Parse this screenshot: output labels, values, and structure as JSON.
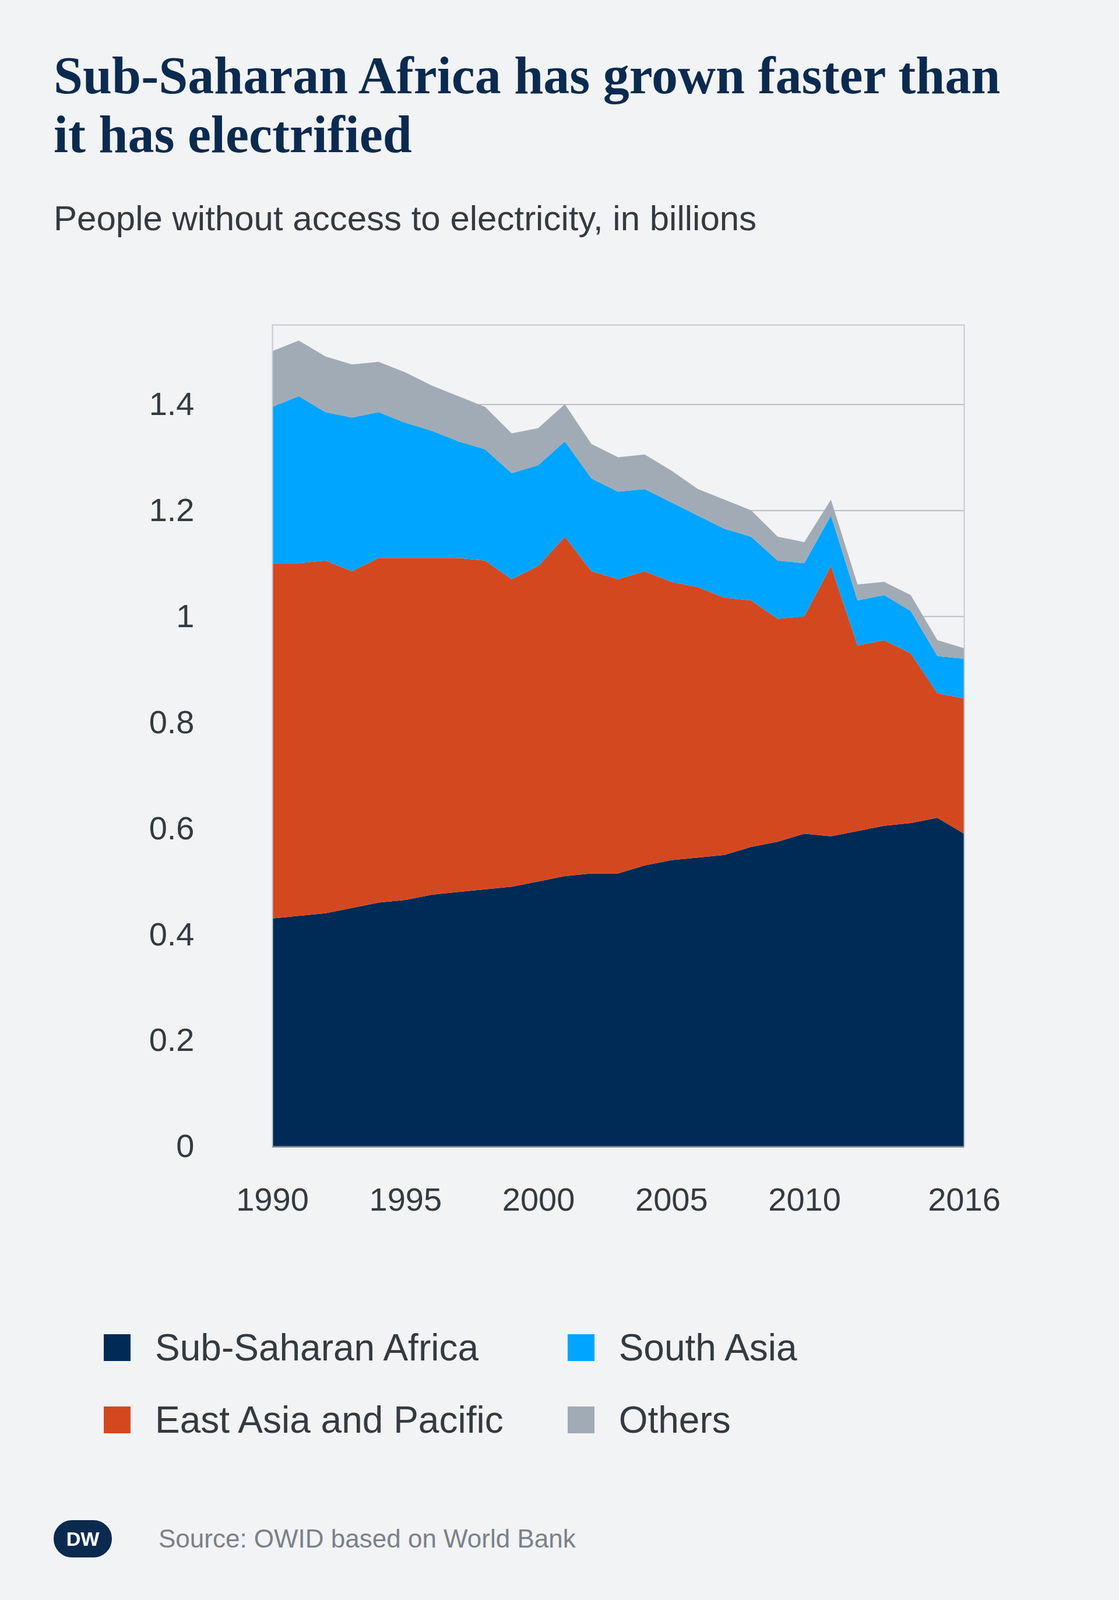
{
  "chart_data": {
    "type": "area",
    "stacked": true,
    "grid": true,
    "legend": "bottom",
    "title": "Sub-Saharan Africa has grown faster than it has electrified",
    "subtitle": "People without access to electricity, in billions",
    "source": "Source: OWID based on World Bank",
    "logo": "DW",
    "x": [
      1990,
      1991,
      1992,
      1993,
      1994,
      1995,
      1996,
      1997,
      1998,
      1999,
      2000,
      2001,
      2002,
      2003,
      2004,
      2005,
      2006,
      2007,
      2008,
      2009,
      2010,
      2011,
      2012,
      2013,
      2014,
      2015,
      2016
    ],
    "xlim": [
      1990,
      2016
    ],
    "xticks": [
      1990,
      1995,
      2000,
      2005,
      2010,
      2016
    ],
    "ylim": [
      0,
      1.55
    ],
    "yticks": [
      0,
      0.2,
      0.4,
      0.6,
      0.8,
      1,
      1.2,
      1.4
    ],
    "series": [
      {
        "name": "Sub-Saharan Africa",
        "color": "#002b57",
        "values": [
          0.43,
          0.435,
          0.44,
          0.45,
          0.46,
          0.465,
          0.475,
          0.48,
          0.485,
          0.49,
          0.5,
          0.51,
          0.515,
          0.515,
          0.53,
          0.54,
          0.545,
          0.55,
          0.565,
          0.575,
          0.59,
          0.585,
          0.595,
          0.605,
          0.61,
          0.62,
          0.59
        ]
      },
      {
        "name": "East Asia and Pacific",
        "color": "#d44820",
        "values": [
          0.67,
          0.665,
          0.665,
          0.635,
          0.65,
          0.645,
          0.635,
          0.63,
          0.62,
          0.58,
          0.595,
          0.64,
          0.57,
          0.555,
          0.555,
          0.525,
          0.51,
          0.485,
          0.465,
          0.42,
          0.41,
          0.51,
          0.35,
          0.35,
          0.32,
          0.235,
          0.255
        ]
      },
      {
        "name": "South Asia",
        "color": "#00a5ff",
        "values": [
          0.295,
          0.315,
          0.28,
          0.29,
          0.275,
          0.255,
          0.24,
          0.22,
          0.21,
          0.2,
          0.19,
          0.18,
          0.175,
          0.165,
          0.155,
          0.15,
          0.135,
          0.13,
          0.12,
          0.11,
          0.1,
          0.095,
          0.085,
          0.085,
          0.08,
          0.07,
          0.075
        ]
      },
      {
        "name": "Others",
        "color": "#a1abb5",
        "values": [
          0.105,
          0.105,
          0.105,
          0.1,
          0.095,
          0.095,
          0.085,
          0.085,
          0.08,
          0.075,
          0.07,
          0.07,
          0.065,
          0.065,
          0.065,
          0.06,
          0.05,
          0.055,
          0.05,
          0.045,
          0.04,
          0.03,
          0.03,
          0.025,
          0.03,
          0.03,
          0.02
        ]
      }
    ]
  }
}
